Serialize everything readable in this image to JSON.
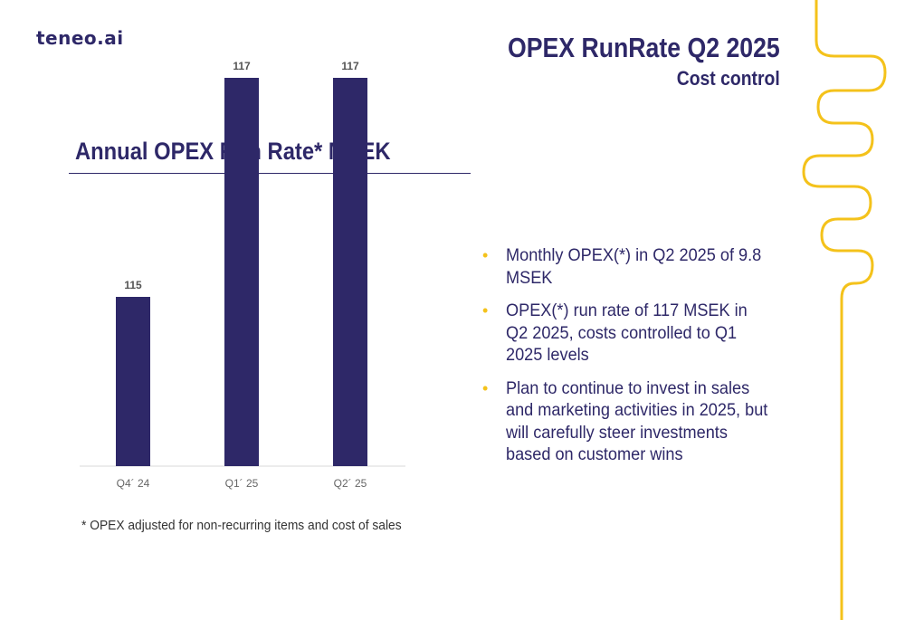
{
  "logo": {
    "text": "teneo.ai"
  },
  "header": {
    "title": "OPEX RunRate Q2 2025",
    "subtitle": "Cost control"
  },
  "chart_data": {
    "type": "bar",
    "title": "Annual OPEX Run Rate* MSEK",
    "categories": [
      "Q4´ 24",
      "Q1´ 25",
      "Q2´ 25"
    ],
    "values": [
      115,
      117,
      117
    ],
    "data_labels": [
      "115",
      "117",
      "117"
    ],
    "bar_color": "#2e2868",
    "grid": false,
    "legend": "none"
  },
  "footnote": "* OPEX adjusted for non-recurring items and cost of sales",
  "bullets": [
    "Monthly OPEX(*) in Q2 2025 of 9.8 MSEK",
    "OPEX(*) run rate of 117 MSEK in Q2 2025, costs controlled to Q1 2025 levels",
    "Plan to continue to invest in sales and marketing activities in 2025, but will carefully steer investments based on customer wins"
  ],
  "colors": {
    "primary": "#2e2868",
    "accent": "#f4c21b",
    "bullet": "#f4c21b"
  },
  "decor": {
    "icon": "yellow-wave-line"
  }
}
